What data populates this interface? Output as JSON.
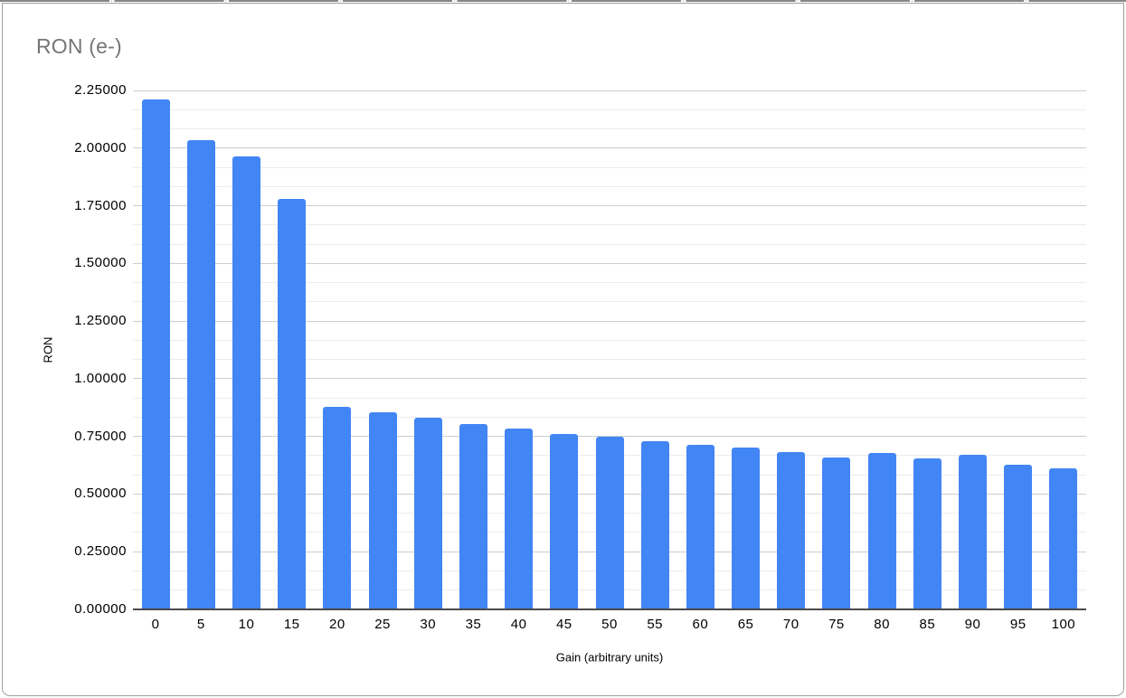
{
  "chart_data": {
    "type": "bar",
    "title": "RON (e-)",
    "xlabel": "Gain (arbitrary units)",
    "ylabel": "RON",
    "categories": [
      "0",
      "5",
      "10",
      "15",
      "20",
      "25",
      "30",
      "35",
      "40",
      "45",
      "50",
      "55",
      "60",
      "65",
      "70",
      "75",
      "80",
      "85",
      "90",
      "95",
      "100"
    ],
    "values": [
      2.21,
      2.035,
      1.965,
      1.78,
      0.88,
      0.855,
      0.83,
      0.805,
      0.785,
      0.762,
      0.747,
      0.729,
      0.714,
      0.701,
      0.681,
      0.66,
      0.678,
      0.656,
      0.669,
      0.627,
      0.611
    ],
    "ylim": [
      0,
      2.25
    ],
    "y_major_step": 0.25,
    "y_minor_divisions_per_major": 3,
    "y_tick_labels": [
      "0.00000",
      "0.25000",
      "0.50000",
      "0.75000",
      "1.00000",
      "1.25000",
      "1.50000",
      "1.75000",
      "2.00000",
      "2.25000"
    ],
    "grid": true,
    "legend_position": "none",
    "bar_color": "#4285f4",
    "colors": {
      "bar": "#4285f4",
      "title_text": "#757575",
      "axis_text": "#000000",
      "major_gridline": "#cdcdcd",
      "minor_gridline": "#ececec",
      "axis_line": "#4a4a4a",
      "frame_border": "#9e9e9e"
    }
  }
}
